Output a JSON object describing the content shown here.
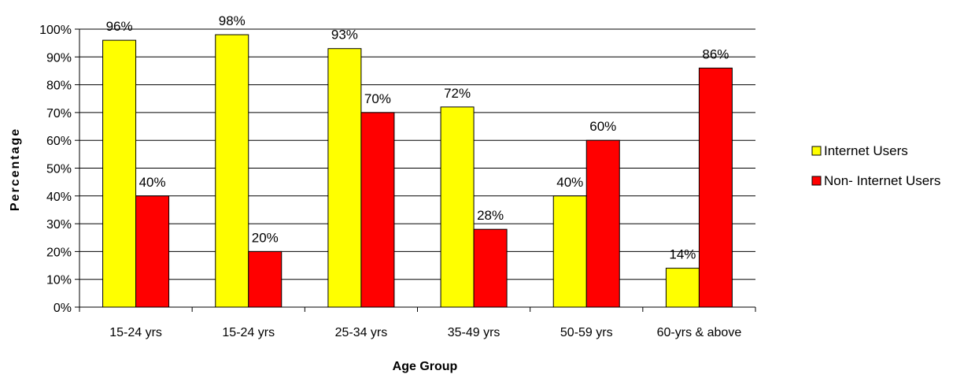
{
  "chart_data": {
    "type": "bar",
    "title": "",
    "xlabel": "Age Group",
    "ylabel": "Percentage",
    "ylim": [
      0,
      100
    ],
    "yticks": [
      "0%",
      "10%",
      "20%",
      "30%",
      "40%",
      "50%",
      "60%",
      "70%",
      "80%",
      "90%",
      "100%"
    ],
    "categories": [
      "15-24 yrs",
      "15-24 yrs",
      "25-34 yrs",
      "35-49 yrs",
      "50-59 yrs",
      "60-yrs & above"
    ],
    "series": [
      {
        "name": "Internet Users",
        "color": "#ffff00",
        "values": [
          96,
          98,
          93,
          72,
          40,
          14
        ],
        "labels": [
          "96%",
          "98%",
          "93%",
          "72%",
          "40%",
          "14%"
        ]
      },
      {
        "name": "Non- Internet Users",
        "color": "#ff0000",
        "values": [
          40,
          20,
          70,
          28,
          60,
          86
        ],
        "labels": [
          "40%",
          "20%",
          "70%",
          "28%",
          "60%",
          "86%"
        ]
      }
    ],
    "grid": true,
    "legend": "right"
  }
}
